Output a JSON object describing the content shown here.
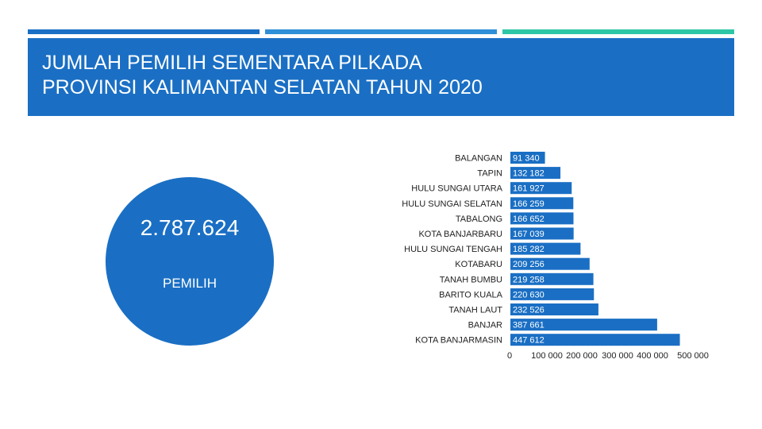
{
  "colors": {
    "accent_1": "#1a6fc4",
    "accent_2": "#2f8fd8",
    "accent_3": "#2ec7a6",
    "band": "#1a6fc4",
    "circle": "#1a6fc4",
    "bar": "#1a6fc4",
    "label_text": "#222222",
    "value_text": "#ffffff"
  },
  "header": {
    "title": "JUMLAH PEMILIH SEMENTARA PILKADA\nPROVINSI KALIMANTAN SELATAN TAHUN 2020"
  },
  "summary": {
    "total": "2.787.624",
    "unit": "PEMILIH"
  },
  "chart_data": {
    "type": "bar",
    "orientation": "horizontal",
    "categories": [
      "BALANGAN",
      "TAPIN",
      "HULU SUNGAI UTARA",
      "HULU SUNGAI SELATAN",
      "TABALONG",
      "KOTA BANJARBARU",
      "HULU SUNGAI TENGAH",
      "KOTABARU",
      "TANAH BUMBU",
      "BARITO KUALA",
      "TANAH LAUT",
      "BANJAR",
      "KOTA BANJARMASIN"
    ],
    "values": [
      91340,
      132182,
      161927,
      166259,
      166652,
      167039,
      185282,
      209256,
      219258,
      220630,
      232526,
      387661,
      447612
    ],
    "value_labels": [
      "91 340",
      "132 182",
      "161 927",
      "166 259",
      "166 652",
      "167 039",
      "185 282",
      "209 256",
      "219 258",
      "220 630",
      "232 526",
      "387 661",
      "447 612"
    ],
    "x_ticks": [
      0,
      100000,
      200000,
      300000,
      400000,
      500000
    ],
    "x_tick_labels": [
      "0",
      "100 000",
      "200 000",
      "300 000",
      "400 000",
      "500 000"
    ],
    "xlim": [
      0,
      500000
    ],
    "grid": false,
    "legend": "none"
  }
}
